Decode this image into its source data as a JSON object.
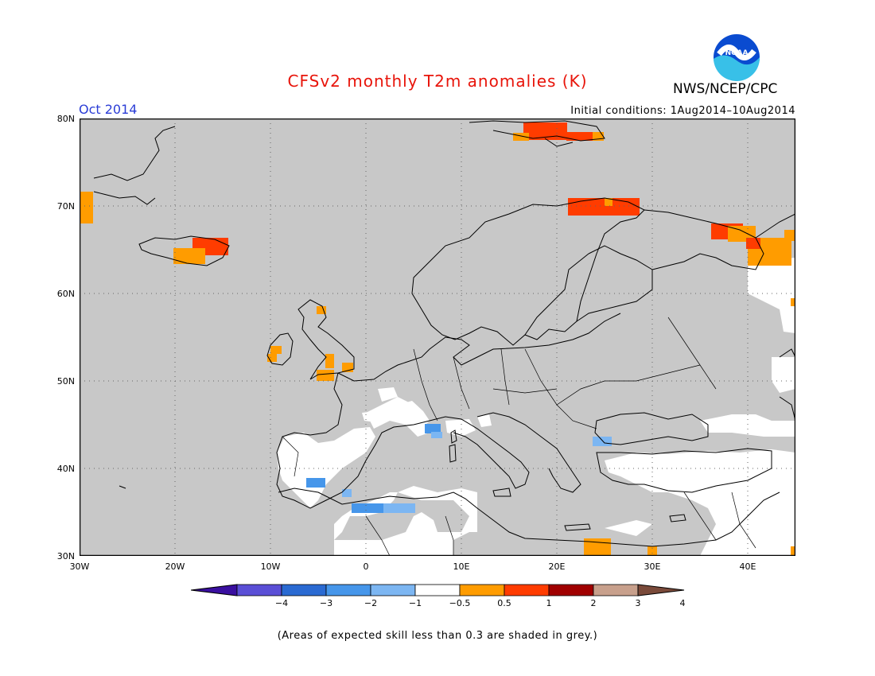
{
  "title": "CFSv2 monthly T2m anomalies (K)",
  "agency": "NWS/NCEP/CPC",
  "logo_text": "NOAA",
  "month": "Oct 2014",
  "initial_conditions": "Initial conditions: 1Aug2014–10Aug2014",
  "lat_labels": [
    "80N",
    "70N",
    "60N",
    "50N",
    "40N",
    "30N"
  ],
  "lon_labels": [
    "30W",
    "20W",
    "10W",
    "0",
    "10E",
    "20E",
    "30E",
    "40E"
  ],
  "colorbar": {
    "labels": [
      "−4",
      "−3",
      "−2",
      "−1",
      "−0.5",
      "0.5",
      "1",
      "2",
      "3",
      "4"
    ],
    "colors": [
      "#3a0fa0",
      "#5a4fd6",
      "#2a6ad2",
      "#4696ea",
      "#7cb6f2",
      "#ffffff",
      "#ff9c00",
      "#ff3c00",
      "#a00000",
      "#c8a08c",
      "#7a4a3a"
    ]
  },
  "colors": {
    "land_skill_low": "#c8c8c8",
    "coast": "#000000",
    "orange": "#ff9c00",
    "red": "#ff3c00",
    "lightblue": "#7cb6f2",
    "midblue": "#4696ea"
  },
  "footnote": "(Areas of expected skill less than 0.3 are shaded in grey.)"
}
